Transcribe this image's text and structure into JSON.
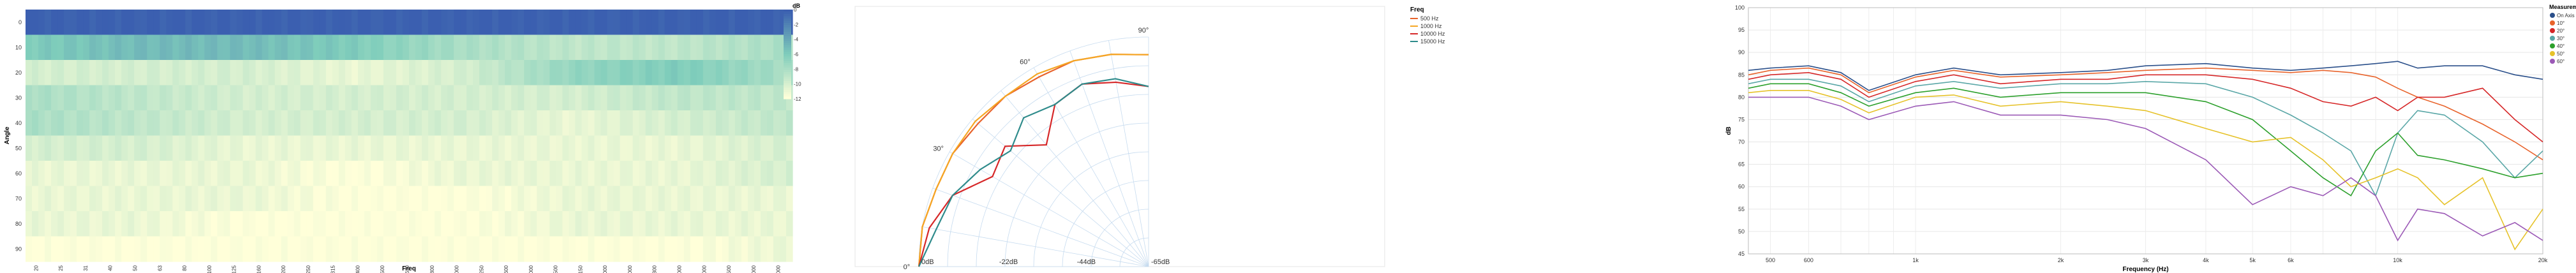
{
  "chart_data": [
    {
      "type": "heatmap",
      "xlabel": "Freq",
      "ylabel": "Angle",
      "y_ticks": [
        "0",
        "10",
        "20",
        "30",
        "40",
        "50",
        "60",
        "70",
        "80",
        "90"
      ],
      "x_tick_labels": [
        "20",
        "25",
        "31",
        "40",
        "50",
        "63",
        "80",
        "100",
        "125",
        "160",
        "200",
        "250",
        "315",
        "400",
        "500",
        "630",
        "800",
        "1000",
        "1250",
        "1600",
        "2000",
        "2500",
        "3150",
        "4000",
        "5000",
        "6300",
        "8000",
        "10000",
        "12500",
        "16000",
        "20000"
      ],
      "colorbar": {
        "title": "dB",
        "ticks": [
          "0",
          "-2",
          "-4",
          "-6",
          "-8",
          "-10",
          "-12"
        ],
        "range": [
          -12,
          0
        ]
      },
      "colors": {
        "high": "#3b5fb0",
        "mid": "#7fcdbb",
        "low": "#ffffd9"
      },
      "rows": [
        {
          "angle": 0,
          "profile": [
            0,
            0,
            0,
            0,
            0,
            0,
            0,
            0
          ]
        },
        {
          "angle": 10,
          "profile": [
            -6,
            -5,
            -5,
            -6,
            -8,
            -9,
            -9,
            -8
          ]
        },
        {
          "angle": 20,
          "profile": [
            -10,
            -10,
            -10,
            -11,
            -10,
            -7,
            -6,
            -8
          ]
        },
        {
          "angle": 30,
          "profile": [
            -8,
            -9,
            -10,
            -10,
            -10,
            -10,
            -9,
            -9
          ]
        },
        {
          "angle": 40,
          "profile": [
            -8,
            -9,
            -10,
            -10,
            -10,
            -11,
            -10,
            -9
          ]
        },
        {
          "angle": 50,
          "profile": [
            -10,
            -10,
            -11,
            -11,
            -11,
            -11,
            -11,
            -10
          ]
        },
        {
          "angle": 60,
          "profile": [
            -11,
            -11,
            -11,
            -12,
            -11,
            -11,
            -11,
            -10
          ]
        },
        {
          "angle": 70,
          "profile": [
            -11,
            -11,
            -11,
            -12,
            -12,
            -11,
            -11,
            -11
          ]
        },
        {
          "angle": 80,
          "profile": [
            -11,
            -11,
            -12,
            -12,
            -12,
            -11,
            -11,
            -11
          ]
        },
        {
          "angle": 90,
          "profile": [
            -12,
            -12,
            -12,
            -12,
            -12,
            -12,
            -12,
            -11
          ]
        }
      ]
    },
    {
      "type": "line",
      "subtype": "polar",
      "legend_title": "Freq",
      "legend_position": "top-right",
      "angle_labels": [
        "0°",
        "30°",
        "60°",
        "90°"
      ],
      "radius_labels": [
        "0dB",
        "-22dB",
        "-44dB",
        "-65dB"
      ],
      "radius_range": [
        -65,
        0
      ],
      "series": [
        {
          "name": "500 Hz",
          "color": "#e8632b",
          "r": [
            0,
            0,
            -1,
            -1,
            -2,
            -2,
            -3,
            -3,
            -4,
            -5
          ]
        },
        {
          "name": "1000 Hz",
          "color": "#f5a623",
          "r": [
            0,
            0,
            -1,
            -1,
            -1,
            -2,
            -2,
            -3,
            -4,
            -5
          ]
        },
        {
          "name": "10000 Hz",
          "color": "#d62728",
          "r": [
            0,
            -2,
            -6,
            -14,
            -12,
            -20,
            -12,
            -10,
            -12,
            -14
          ]
        },
        {
          "name": "15000 Hz",
          "color": "#2e8b8b",
          "r": [
            0,
            -4,
            -6,
            -10,
            -14,
            -10,
            -12,
            -10,
            -11,
            -14
          ]
        }
      ]
    },
    {
      "type": "line",
      "xlabel": "Frequency (Hz)",
      "ylabel": "dB",
      "xscale": "log",
      "xlim": [
        450,
        20000
      ],
      "ylim": [
        45,
        100
      ],
      "x_ticks": [
        500,
        600,
        1000,
        2000,
        3000,
        4000,
        5000,
        6000,
        10000,
        20000
      ],
      "x_tick_labels": [
        "500",
        "600",
        "1k",
        "2k",
        "3k",
        "4k",
        "5k",
        "6k",
        "10k",
        "20k"
      ],
      "y_ticks": [
        "45",
        "50",
        "55",
        "60",
        "65",
        "70",
        "75",
        "80",
        "85",
        "90",
        "95",
        "100"
      ],
      "legend_title": "Measurements",
      "legend_position": "top-right",
      "grid": true,
      "series": [
        {
          "name": "On Axis",
          "color": "#2a4f8a",
          "points": [
            [
              450,
              86
            ],
            [
              500,
              86.5
            ],
            [
              600,
              87
            ],
            [
              700,
              85.5
            ],
            [
              800,
              81.5
            ],
            [
              1000,
              85
            ],
            [
              1200,
              86.5
            ],
            [
              1500,
              85
            ],
            [
              2000,
              85.5
            ],
            [
              2500,
              86
            ],
            [
              3000,
              87
            ],
            [
              4000,
              87.5
            ],
            [
              5000,
              86.5
            ],
            [
              6000,
              86
            ],
            [
              7000,
              86.5
            ],
            [
              8000,
              87
            ],
            [
              9000,
              87.5
            ],
            [
              10000,
              88
            ],
            [
              11000,
              86.5
            ],
            [
              12500,
              87
            ],
            [
              15000,
              87
            ],
            [
              17500,
              85
            ],
            [
              20000,
              84
            ]
          ]
        },
        {
          "name": "10°",
          "color": "#e8632b",
          "points": [
            [
              450,
              85
            ],
            [
              500,
              86
            ],
            [
              600,
              86.5
            ],
            [
              700,
              85
            ],
            [
              800,
              81
            ],
            [
              1000,
              84.5
            ],
            [
              1200,
              86
            ],
            [
              1500,
              84.5
            ],
            [
              2000,
              85
            ],
            [
              2500,
              85.5
            ],
            [
              3000,
              86
            ],
            [
              4000,
              86.5
            ],
            [
              5000,
              86
            ],
            [
              6000,
              85.5
            ],
            [
              7000,
              86
            ],
            [
              8000,
              85.5
            ],
            [
              9000,
              84.5
            ],
            [
              10000,
              82
            ],
            [
              11000,
              80
            ],
            [
              12500,
              78
            ],
            [
              15000,
              74
            ],
            [
              17500,
              70
            ],
            [
              20000,
              66
            ]
          ]
        },
        {
          "name": "20°",
          "color": "#d62728",
          "points": [
            [
              450,
              84
            ],
            [
              500,
              85
            ],
            [
              600,
              85.5
            ],
            [
              700,
              84
            ],
            [
              800,
              80
            ],
            [
              1000,
              83.5
            ],
            [
              1200,
              85
            ],
            [
              1500,
              83
            ],
            [
              2000,
              84
            ],
            [
              2500,
              84
            ],
            [
              3000,
              85
            ],
            [
              4000,
              85
            ],
            [
              5000,
              84
            ],
            [
              6000,
              82
            ],
            [
              7000,
              79
            ],
            [
              8000,
              78
            ],
            [
              9000,
              80
            ],
            [
              10000,
              77
            ],
            [
              11000,
              80
            ],
            [
              12500,
              80
            ],
            [
              15000,
              82
            ],
            [
              17500,
              75
            ],
            [
              20000,
              70
            ]
          ]
        },
        {
          "name": "30°",
          "color": "#5aa7a7",
          "points": [
            [
              450,
              83
            ],
            [
              500,
              84
            ],
            [
              600,
              84
            ],
            [
              700,
              82.5
            ],
            [
              800,
              79
            ],
            [
              1000,
              82.5
            ],
            [
              1200,
              83.5
            ],
            [
              1500,
              82
            ],
            [
              2000,
              83
            ],
            [
              2500,
              83
            ],
            [
              3000,
              83.5
            ],
            [
              4000,
              83
            ],
            [
              5000,
              80
            ],
            [
              6000,
              76
            ],
            [
              7000,
              72
            ],
            [
              8000,
              68
            ],
            [
              9000,
              58
            ],
            [
              10000,
              72
            ],
            [
              11000,
              77
            ],
            [
              12500,
              76
            ],
            [
              15000,
              70
            ],
            [
              17500,
              62
            ],
            [
              20000,
              68
            ]
          ]
        },
        {
          "name": "40°",
          "color": "#2ca02c",
          "points": [
            [
              450,
              82
            ],
            [
              500,
              83
            ],
            [
              600,
              83
            ],
            [
              700,
              81
            ],
            [
              800,
              78
            ],
            [
              1000,
              81
            ],
            [
              1200,
              82
            ],
            [
              1500,
              80
            ],
            [
              2000,
              81
            ],
            [
              2500,
              81
            ],
            [
              3000,
              81
            ],
            [
              4000,
              79
            ],
            [
              5000,
              75
            ],
            [
              6000,
              68
            ],
            [
              7000,
              62
            ],
            [
              8000,
              58
            ],
            [
              9000,
              68
            ],
            [
              10000,
              72
            ],
            [
              11000,
              67
            ],
            [
              12500,
              66
            ],
            [
              15000,
              64
            ],
            [
              17500,
              62
            ],
            [
              20000,
              63
            ]
          ]
        },
        {
          "name": "50°",
          "color": "#e6c229",
          "points": [
            [
              450,
              81
            ],
            [
              500,
              81.5
            ],
            [
              600,
              81.5
            ],
            [
              700,
              79.5
            ],
            [
              800,
              76.5
            ],
            [
              1000,
              80
            ],
            [
              1200,
              80.5
            ],
            [
              1500,
              78
            ],
            [
              2000,
              79
            ],
            [
              2500,
              78
            ],
            [
              3000,
              77
            ],
            [
              4000,
              73
            ],
            [
              5000,
              70
            ],
            [
              6000,
              71
            ],
            [
              7000,
              66
            ],
            [
              8000,
              60
            ],
            [
              9000,
              62
            ],
            [
              10000,
              64
            ],
            [
              11000,
              62
            ],
            [
              12500,
              56
            ],
            [
              15000,
              62
            ],
            [
              17500,
              46
            ],
            [
              20000,
              55
            ]
          ]
        },
        {
          "name": "60°",
          "color": "#9b59b6",
          "points": [
            [
              450,
              80
            ],
            [
              500,
              80
            ],
            [
              600,
              80
            ],
            [
              700,
              78
            ],
            [
              800,
              75
            ],
            [
              1000,
              78
            ],
            [
              1200,
              79
            ],
            [
              1500,
              76
            ],
            [
              2000,
              76
            ],
            [
              2500,
              75
            ],
            [
              3000,
              73
            ],
            [
              4000,
              66
            ],
            [
              5000,
              56
            ],
            [
              6000,
              60
            ],
            [
              7000,
              58
            ],
            [
              8000,
              62
            ],
            [
              9000,
              58
            ],
            [
              10000,
              48
            ],
            [
              11000,
              55
            ],
            [
              12500,
              54
            ],
            [
              15000,
              49
            ],
            [
              17500,
              52
            ],
            [
              20000,
              48
            ]
          ]
        }
      ]
    }
  ]
}
